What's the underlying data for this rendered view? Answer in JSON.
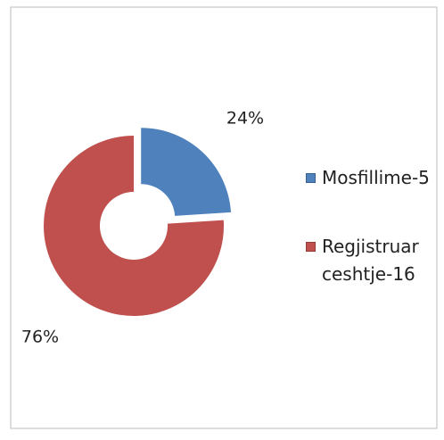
{
  "chart_data": {
    "type": "donut",
    "categories": [
      "Mosfillime-5",
      "Regjistruar ceshtje-16"
    ],
    "values": [
      24,
      76
    ],
    "value_labels": [
      "24%",
      "76%"
    ],
    "colors": [
      "#4f81bd",
      "#c0504d"
    ],
    "exploded": [
      true,
      false
    ],
    "legend": "right"
  }
}
